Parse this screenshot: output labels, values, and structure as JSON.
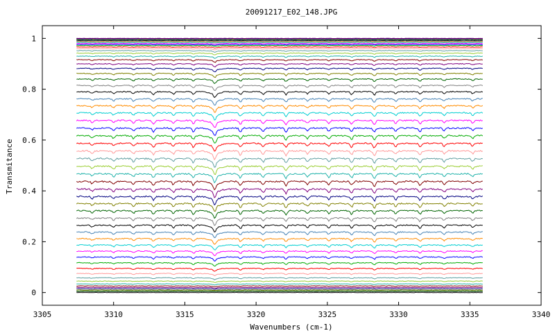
{
  "chart_data": {
    "type": "line",
    "title": "20091217_E02_148.JPG",
    "xlabel": "Wavenumbers (cm-1)",
    "ylabel": "Transmitance",
    "xlim": [
      3305,
      3340
    ],
    "ylim": [
      -0.05,
      1.05
    ],
    "xticks": [
      3305,
      3310,
      3315,
      3320,
      3325,
      3330,
      3335,
      3340
    ],
    "xtick_labels": [
      "3305",
      "3310",
      "3315",
      "3320",
      "3325",
      "3330",
      "3335",
      "3340"
    ],
    "yticks": [
      0,
      0.2,
      0.4,
      0.6,
      0.8,
      1
    ],
    "ytick_labels": [
      "0",
      "0.2",
      "0.4",
      "0.6",
      "0.8",
      "1"
    ],
    "grid": false,
    "legend": "none",
    "x_range": [
      3307.4,
      3335.9
    ],
    "series_count": 60,
    "baseline_levels": [
      0.0,
      0.003,
      0.006,
      0.01,
      0.015,
      0.02,
      0.026,
      0.034,
      0.045,
      0.058,
      0.075,
      0.095,
      0.117,
      0.14,
      0.163,
      0.187,
      0.212,
      0.238,
      0.265,
      0.293,
      0.322,
      0.35,
      0.378,
      0.407,
      0.437,
      0.467,
      0.497,
      0.527,
      0.557,
      0.587,
      0.617,
      0.647,
      0.677,
      0.707,
      0.735,
      0.762,
      0.79,
      0.815,
      0.84,
      0.862,
      0.882,
      0.9,
      0.916,
      0.93,
      0.942,
      0.952,
      0.96,
      0.966,
      0.972,
      0.976,
      0.98,
      0.984,
      0.987,
      0.99,
      0.992,
      0.994,
      0.996,
      0.997,
      0.998,
      1.0
    ],
    "absorption_lines": [
      {
        "x": 3308.5,
        "depth": 0.4
      },
      {
        "x": 3310.0,
        "depth": 0.5
      },
      {
        "x": 3311.4,
        "depth": 0.55
      },
      {
        "x": 3312.8,
        "depth": 0.7
      },
      {
        "x": 3314.2,
        "depth": 0.6
      },
      {
        "x": 3315.6,
        "depth": 0.7
      },
      {
        "x": 3317.1,
        "depth": 1.0
      },
      {
        "x": 3318.9,
        "depth": 0.75
      },
      {
        "x": 3320.5,
        "depth": 0.65
      },
      {
        "x": 3322.1,
        "depth": 0.8
      },
      {
        "x": 3323.6,
        "depth": 0.55
      },
      {
        "x": 3325.1,
        "depth": 0.6
      },
      {
        "x": 3326.7,
        "depth": 0.7
      },
      {
        "x": 3328.3,
        "depth": 0.85
      },
      {
        "x": 3329.8,
        "depth": 0.6
      },
      {
        "x": 3331.5,
        "depth": 0.7
      },
      {
        "x": 3333.2,
        "depth": 0.55
      },
      {
        "x": 3335.2,
        "depth": 0.5
      }
    ],
    "colors": [
      "#000000",
      "#808080",
      "#006400",
      "#808000",
      "#000080",
      "#800080",
      "#800000",
      "#20b2aa",
      "#9acd32",
      "#5f9ea0",
      "#ff9999",
      "#ff0000",
      "#00aa00",
      "#0000ff",
      "#ff00ff",
      "#00ced1",
      "#ff8c00",
      "#4682b4"
    ]
  }
}
